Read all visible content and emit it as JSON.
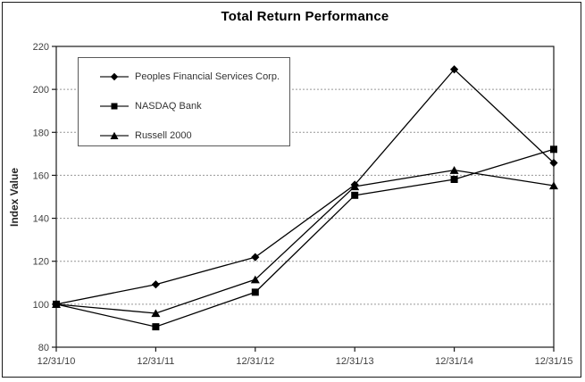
{
  "chart_data": {
    "type": "line",
    "title": "Total Return Performance",
    "xlabel": "",
    "ylabel": "Index Value",
    "categories": [
      "12/31/10",
      "12/31/11",
      "12/31/12",
      "12/31/13",
      "12/31/14",
      "12/31/15"
    ],
    "ylim": [
      80,
      220
    ],
    "yticks": [
      80,
      100,
      120,
      140,
      160,
      180,
      200,
      220
    ],
    "grid": "horizontal-dashed",
    "legend_position": "top-left-inside",
    "colors": {
      "line": "#000000",
      "grid": "#969696",
      "tick_text": "#404040",
      "plot_border": "#1a1a1a"
    },
    "series": [
      {
        "name": "Peoples Financial Services Corp.",
        "marker": "diamond",
        "color": "#000000",
        "values": [
          100,
          109.2,
          121.9,
          155.6,
          209.3,
          165.8
        ]
      },
      {
        "name": "NASDAQ Bank",
        "marker": "square",
        "color": "#000000",
        "values": [
          100,
          89.5,
          105.6,
          150.7,
          158.1,
          172.1
        ]
      },
      {
        "name": "Russell 2000",
        "marker": "triangle",
        "color": "#000000",
        "values": [
          100,
          95.8,
          111.5,
          154.8,
          162.4,
          155.2
        ]
      }
    ]
  }
}
